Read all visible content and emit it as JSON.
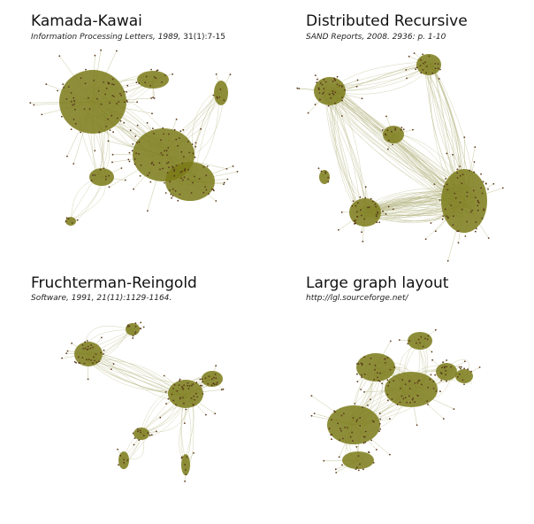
{
  "colors": {
    "edge": "#b9b98a",
    "cluster": "#7a7a18",
    "node": "#5a3a1a",
    "background": "#ffffff"
  },
  "panels": [
    {
      "id": "kamada-kawai",
      "title": "Kamada-Kawai",
      "citation_italic": "Information Processing Letters, 1989,",
      "citation_plain": " 31(1):7-15"
    },
    {
      "id": "distributed-recursive",
      "title": "Distributed Recursive",
      "citation_italic": "SAND Reports, 2008. 2936: p. 1-10",
      "citation_plain": ""
    },
    {
      "id": "fruchterman-reingold",
      "title": "Fruchterman-Reingold",
      "citation_italic": "Software, 1991, 21(11):1129-1164.",
      "citation_plain": ""
    },
    {
      "id": "large-graph-layout",
      "title": "Large graph layout",
      "citation_italic": "http://lgl.sourceforge.net/",
      "citation_plain": ""
    }
  ]
}
